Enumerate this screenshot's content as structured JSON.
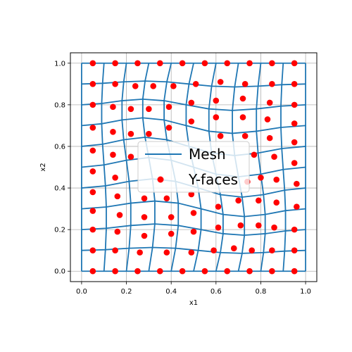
{
  "chart_data": {
    "type": "line",
    "title": "",
    "xlabel": "x1",
    "ylabel": "x2",
    "xlim": [
      -0.05,
      1.05
    ],
    "ylim": [
      -0.05,
      1.05
    ],
    "grid": true,
    "x_ticks": [
      "0.0",
      "0.2",
      "0.4",
      "0.6",
      "0.8",
      "1.0"
    ],
    "y_ticks": [
      "0.0",
      "0.2",
      "0.4",
      "0.6",
      "0.8",
      "1.0"
    ],
    "legend": {
      "position": "center",
      "entries": [
        "Mesh",
        "Y-faces"
      ]
    },
    "colors": {
      "mesh": "#1f77b4",
      "faces": "#ff0000",
      "grid": "#b0b0b0"
    },
    "mesh_x_nodes": [
      0.0,
      0.1,
      0.2,
      0.3,
      0.4,
      0.5,
      0.6,
      0.7,
      0.8,
      0.9,
      1.0
    ],
    "mesh_y_nodes": [
      0.0,
      0.1,
      0.2,
      0.3,
      0.4,
      0.5,
      0.6,
      0.7,
      0.8,
      0.9,
      1.0
    ],
    "y_faces": [
      {
        "x": 0.05,
        "y": 1.0
      },
      {
        "x": 0.15,
        "y": 1.0
      },
      {
        "x": 0.25,
        "y": 1.0
      },
      {
        "x": 0.35,
        "y": 1.0
      },
      {
        "x": 0.45,
        "y": 1.0
      },
      {
        "x": 0.55,
        "y": 1.0
      },
      {
        "x": 0.65,
        "y": 1.0
      },
      {
        "x": 0.75,
        "y": 1.0
      },
      {
        "x": 0.85,
        "y": 1.0
      },
      {
        "x": 0.95,
        "y": 1.0
      },
      {
        "x": 0.05,
        "y": 0.9
      },
      {
        "x": 0.15,
        "y": 0.9
      },
      {
        "x": 0.24,
        "y": 0.89
      },
      {
        "x": 0.32,
        "y": 0.89
      },
      {
        "x": 0.41,
        "y": 0.89
      },
      {
        "x": 0.51,
        "y": 0.9
      },
      {
        "x": 0.62,
        "y": 0.91
      },
      {
        "x": 0.73,
        "y": 0.9
      },
      {
        "x": 0.85,
        "y": 0.9
      },
      {
        "x": 0.95,
        "y": 0.9
      },
      {
        "x": 0.05,
        "y": 0.8
      },
      {
        "x": 0.14,
        "y": 0.79
      },
      {
        "x": 0.22,
        "y": 0.78
      },
      {
        "x": 0.3,
        "y": 0.78
      },
      {
        "x": 0.39,
        "y": 0.79
      },
      {
        "x": 0.49,
        "y": 0.81
      },
      {
        "x": 0.6,
        "y": 0.82
      },
      {
        "x": 0.72,
        "y": 0.83
      },
      {
        "x": 0.84,
        "y": 0.81
      },
      {
        "x": 0.95,
        "y": 0.8
      },
      {
        "x": 0.05,
        "y": 0.69
      },
      {
        "x": 0.14,
        "y": 0.67
      },
      {
        "x": 0.22,
        "y": 0.66
      },
      {
        "x": 0.3,
        "y": 0.66
      },
      {
        "x": 0.39,
        "y": 0.69
      },
      {
        "x": 0.49,
        "y": 0.72
      },
      {
        "x": 0.6,
        "y": 0.74
      },
      {
        "x": 0.72,
        "y": 0.74
      },
      {
        "x": 0.83,
        "y": 0.73
      },
      {
        "x": 0.95,
        "y": 0.71
      },
      {
        "x": 0.05,
        "y": 0.58
      },
      {
        "x": 0.14,
        "y": 0.56
      },
      {
        "x": 0.22,
        "y": 0.55
      },
      {
        "x": 0.62,
        "y": 0.65
      },
      {
        "x": 0.73,
        "y": 0.65
      },
      {
        "x": 0.84,
        "y": 0.64
      },
      {
        "x": 0.95,
        "y": 0.62
      },
      {
        "x": 0.05,
        "y": 0.48
      },
      {
        "x": 0.15,
        "y": 0.45
      },
      {
        "x": 0.77,
        "y": 0.56
      },
      {
        "x": 0.86,
        "y": 0.55
      },
      {
        "x": 0.95,
        "y": 0.52
      },
      {
        "x": 0.05,
        "y": 0.38
      },
      {
        "x": 0.16,
        "y": 0.36
      },
      {
        "x": 0.74,
        "y": 0.43
      },
      {
        "x": 0.8,
        "y": 0.45
      },
      {
        "x": 0.87,
        "y": 0.44
      },
      {
        "x": 0.96,
        "y": 0.42
      },
      {
        "x": 0.05,
        "y": 0.29
      },
      {
        "x": 0.17,
        "y": 0.27
      },
      {
        "x": 0.28,
        "y": 0.35
      },
      {
        "x": 0.38,
        "y": 0.35
      },
      {
        "x": 0.49,
        "y": 0.37
      },
      {
        "x": 0.61,
        "y": 0.31
      },
      {
        "x": 0.7,
        "y": 0.34
      },
      {
        "x": 0.79,
        "y": 0.34
      },
      {
        "x": 0.87,
        "y": 0.33
      },
      {
        "x": 0.96,
        "y": 0.31
      },
      {
        "x": 0.05,
        "y": 0.2
      },
      {
        "x": 0.16,
        "y": 0.19
      },
      {
        "x": 0.28,
        "y": 0.26
      },
      {
        "x": 0.4,
        "y": 0.26
      },
      {
        "x": 0.5,
        "y": 0.28
      },
      {
        "x": 0.61,
        "y": 0.21
      },
      {
        "x": 0.71,
        "y": 0.22
      },
      {
        "x": 0.79,
        "y": 0.22
      },
      {
        "x": 0.86,
        "y": 0.21
      },
      {
        "x": 0.95,
        "y": 0.2
      },
      {
        "x": 0.05,
        "y": 0.1
      },
      {
        "x": 0.15,
        "y": 0.1
      },
      {
        "x": 0.28,
        "y": 0.17
      },
      {
        "x": 0.4,
        "y": 0.18
      },
      {
        "x": 0.5,
        "y": 0.19
      },
      {
        "x": 0.59,
        "y": 0.1
      },
      {
        "x": 0.68,
        "y": 0.11
      },
      {
        "x": 0.76,
        "y": 0.1
      },
      {
        "x": 0.85,
        "y": 0.1
      },
      {
        "x": 0.95,
        "y": 0.1
      },
      {
        "x": 0.26,
        "y": 0.09
      },
      {
        "x": 0.38,
        "y": 0.09
      },
      {
        "x": 0.49,
        "y": 0.09
      },
      {
        "x": 0.05,
        "y": 0.0
      },
      {
        "x": 0.15,
        "y": 0.0
      },
      {
        "x": 0.25,
        "y": 0.0
      },
      {
        "x": 0.35,
        "y": 0.0
      },
      {
        "x": 0.45,
        "y": 0.0
      },
      {
        "x": 0.55,
        "y": 0.0
      },
      {
        "x": 0.65,
        "y": 0.0
      },
      {
        "x": 0.75,
        "y": 0.0
      },
      {
        "x": 0.85,
        "y": 0.0
      },
      {
        "x": 0.95,
        "y": 0.0
      }
    ]
  }
}
